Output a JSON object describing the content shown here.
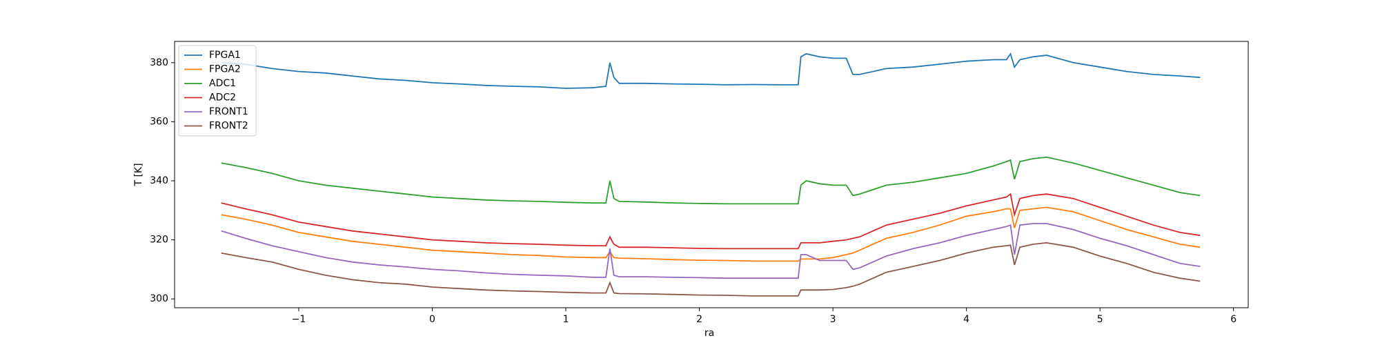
{
  "chart_data": {
    "type": "line",
    "xlabel": "ra",
    "ylabel": "T [K]",
    "xlim": [
      -1.93,
      6.11
    ],
    "ylim": [
      297,
      387.2
    ],
    "xticks": [
      {
        "value": -1,
        "label": "−1"
      },
      0,
      1,
      2,
      3,
      4,
      5,
      6
    ],
    "yticks": [
      300,
      320,
      340,
      360,
      380
    ],
    "legend": "upper-left",
    "x": [
      -1.58,
      -1.4,
      -1.2,
      -1.0,
      -0.8,
      -0.6,
      -0.4,
      -0.2,
      0,
      0.2,
      0.4,
      0.6,
      0.8,
      1.0,
      1.2,
      1.3,
      1.33,
      1.36,
      1.4,
      1.6,
      1.8,
      2.0,
      2.2,
      2.4,
      2.6,
      2.74,
      2.76,
      2.8,
      2.9,
      3.0,
      3.1,
      3.15,
      3.2,
      3.4,
      3.6,
      3.8,
      4.0,
      4.2,
      4.3,
      4.33,
      4.36,
      4.4,
      4.5,
      4.6,
      4.8,
      5.0,
      5.2,
      5.4,
      5.6,
      5.75
    ],
    "series": [
      {
        "name": "FPGA1",
        "color": "#1f77b4",
        "values": [
          380,
          379.5,
          378,
          377,
          376.5,
          375.5,
          374.5,
          374,
          373.2,
          372.8,
          372.3,
          372,
          371.8,
          371.3,
          371.5,
          372,
          380,
          375,
          373,
          373,
          372.8,
          372.7,
          372.5,
          372.6,
          372.5,
          372.5,
          382,
          383,
          382,
          381.5,
          381.5,
          376,
          376,
          378,
          378.5,
          379.5,
          380.5,
          381,
          381,
          383,
          378.5,
          381,
          382,
          382.5,
          380,
          378.5,
          377,
          376,
          375.5,
          375
        ]
      },
      {
        "name": "FPGA2",
        "color": "#ff7f0e",
        "values": [
          328.5,
          327,
          325,
          322.5,
          321,
          319.5,
          318.5,
          317.5,
          316.5,
          316,
          315.5,
          315,
          314.7,
          314.2,
          314,
          314,
          316,
          314,
          313.8,
          313.6,
          313.3,
          313.1,
          313,
          312.8,
          312.8,
          312.8,
          313.5,
          313.5,
          313.5,
          314,
          315,
          315.5,
          316.5,
          320.5,
          322.5,
          325,
          328,
          329.5,
          330.5,
          330.5,
          324,
          330,
          330.5,
          331,
          329.5,
          326.5,
          323.5,
          321,
          318.5,
          317.5
        ]
      },
      {
        "name": "ADC1",
        "color": "#2ca02c",
        "values": [
          346,
          344.5,
          342.5,
          340,
          338.5,
          337.5,
          336.5,
          335.5,
          334.5,
          334,
          333.5,
          333.2,
          333,
          332.7,
          332.5,
          332.5,
          340,
          334,
          333,
          332.8,
          332.5,
          332.3,
          332.2,
          332.2,
          332.2,
          332.2,
          338.5,
          340,
          339,
          338.5,
          338.5,
          335,
          335.5,
          338.5,
          339.5,
          341,
          342.5,
          345,
          346.5,
          347,
          340.5,
          346.5,
          347.5,
          348,
          346,
          343.5,
          341,
          338.5,
          336,
          335
        ]
      },
      {
        "name": "ADC2",
        "color": "#d62728",
        "values": [
          332.5,
          330.5,
          328.5,
          326,
          324.5,
          323,
          322,
          321,
          320,
          319.5,
          319,
          318.7,
          318.5,
          318.2,
          318,
          318,
          321,
          318.5,
          317.5,
          317.5,
          317.3,
          317.1,
          317,
          317,
          317,
          317,
          319,
          319,
          319,
          319.5,
          320,
          320.5,
          321,
          325,
          327,
          329,
          331.5,
          333.5,
          334.5,
          335.5,
          328.5,
          334,
          335,
          335.5,
          334,
          331,
          328,
          325,
          322.5,
          321.5
        ]
      },
      {
        "name": "FRONT1",
        "color": "#9467bd",
        "values": [
          323,
          320.5,
          318,
          316,
          314,
          312.5,
          311.5,
          310.8,
          310,
          309.5,
          308.8,
          308.3,
          308,
          307.8,
          307.3,
          307.3,
          317,
          308,
          307.5,
          307.5,
          307.3,
          307.2,
          307,
          307,
          307,
          307,
          315,
          315,
          313,
          313,
          313,
          310,
          310.5,
          314.5,
          317,
          319,
          321.5,
          323.5,
          324.5,
          325,
          315,
          325,
          325.5,
          325.5,
          323.5,
          320.5,
          318,
          315,
          312,
          311
        ]
      },
      {
        "name": "FRONT2",
        "color": "#8c564b",
        "values": [
          315.5,
          314,
          312.5,
          310,
          308,
          306.5,
          305.5,
          305,
          304,
          303.5,
          303,
          302.7,
          302.5,
          302.2,
          302,
          302,
          305.5,
          302,
          301.8,
          301.7,
          301.5,
          301.3,
          301.2,
          301,
          301,
          301,
          303,
          303,
          303,
          303.2,
          303.8,
          304.3,
          305,
          309,
          311,
          313,
          315.5,
          317.5,
          318,
          318.2,
          311.5,
          317.5,
          318.5,
          319,
          317.5,
          314.5,
          312,
          309,
          307,
          306
        ]
      }
    ]
  }
}
